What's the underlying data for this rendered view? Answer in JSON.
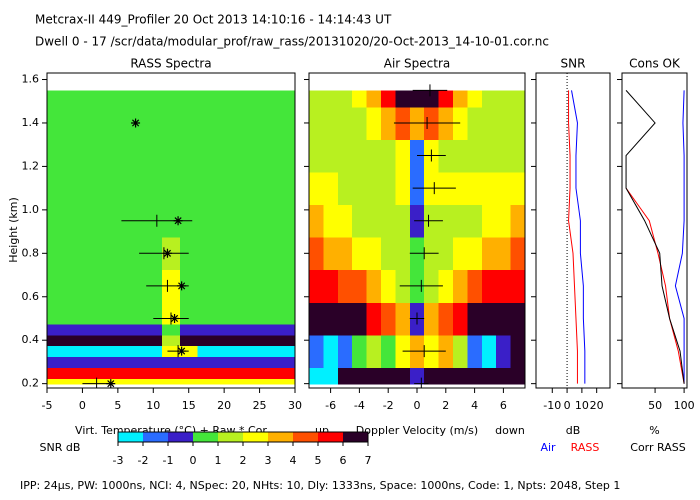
{
  "header": {
    "title": "Metcrax-II  449_Profiler  20 Oct 2013  14:10:16 - 14:14:43 UT",
    "subtitle": "Dwell  0 - 17  /scr/data/modular_prof/raw_rass/20131020/20-Oct-2013_14-10-01.cor.nc"
  },
  "footer": "IPP: 24μs, PW: 1000ns, NCI: 4, NSpec: 20, NHts: 10, Dly: 1333ns, Space: 1000ns, Code: 1, Npts: 2048, Step 1",
  "colorbar": {
    "label": "SNR dB",
    "ticks": [
      -3,
      -2,
      -1,
      0,
      1,
      2,
      3,
      4,
      5,
      6,
      7
    ],
    "colors": [
      "#00f0ff",
      "#2a6cff",
      "#3a1fc8",
      "#44e63a",
      "#b8f020",
      "#ffff00",
      "#ffb000",
      "#ff5000",
      "#ff0000",
      "#2a0028"
    ]
  },
  "chart_data": [
    {
      "type": "heatmap",
      "title": "RASS Spectra",
      "ylabel": "Height (km)",
      "xlabel": "Virt. Temperature (°C)  + Raw  * Cor",
      "ylim": [
        0.18,
        1.63
      ],
      "yticks": [
        0.2,
        0.4,
        0.6,
        0.8,
        {
          "value": 1,
          "label": "1.0"
        },
        1.2,
        1.4,
        1.6
      ],
      "xlim": [
        -5,
        30
      ],
      "xticks": [
        -5,
        0,
        5,
        10,
        15,
        20,
        25,
        30
      ],
      "heatmap": {
        "heights": [
          0.2,
          0.25,
          0.3,
          0.35,
          0.4,
          0.45,
          0.5,
          0.65,
          0.8,
          0.95,
          1.1,
          1.25,
          1.4,
          1.55
        ],
        "x": [
          -5,
          -2.5,
          0,
          2.5,
          5,
          7.5,
          10,
          12.5,
          15,
          17.5,
          20,
          22.5,
          25,
          27.5,
          30
        ],
        "values": [
          [
            2,
            2,
            2,
            2,
            2,
            2,
            2,
            2,
            2,
            2,
            2,
            2,
            2,
            2,
            2
          ],
          [
            5,
            5,
            5,
            5,
            5,
            5,
            5,
            5,
            5,
            5,
            5,
            5,
            5,
            5,
            5
          ],
          [
            -1,
            -1,
            -1,
            -1,
            -1,
            -1,
            -1,
            -1,
            -1,
            -1,
            -1,
            -1,
            -1,
            -1,
            -1
          ],
          [
            -3,
            -3,
            -3,
            -3,
            -3,
            -3,
            -3,
            2,
            2,
            -3,
            -3,
            -3,
            -3,
            -3,
            -3
          ],
          [
            6,
            6,
            6,
            6,
            6,
            6,
            6,
            1,
            6,
            6,
            6,
            6,
            6,
            6,
            6
          ],
          [
            -1,
            -1,
            -1,
            -1,
            -1,
            -1,
            -1,
            0,
            -1,
            -1,
            -1,
            -1,
            -1,
            -1,
            -1
          ],
          [
            0,
            0,
            0,
            0,
            0,
            0,
            0,
            2,
            0,
            0,
            0,
            0,
            0,
            0,
            0
          ],
          [
            0,
            0,
            0,
            0,
            0,
            0,
            0,
            2,
            0,
            0,
            0,
            0,
            0,
            0,
            0
          ],
          [
            0,
            0,
            0,
            0,
            0,
            0,
            0,
            1,
            0,
            0,
            0,
            0,
            0,
            0,
            0
          ],
          [
            0,
            0,
            0,
            0,
            0,
            0,
            0,
            0,
            0,
            0,
            0,
            0,
            0,
            0,
            0
          ],
          [
            0,
            0,
            0,
            0,
            0,
            0,
            0,
            0,
            0,
            0,
            0,
            0,
            0,
            0,
            0
          ],
          [
            0,
            0,
            0,
            0,
            0,
            0,
            0,
            0,
            0,
            0,
            0,
            0,
            0,
            0,
            0
          ],
          [
            0,
            0,
            0,
            0,
            0,
            0,
            0,
            0,
            0,
            0,
            0,
            0,
            0,
            0,
            0
          ],
          [
            0,
            0,
            0,
            0,
            0,
            0,
            0,
            0,
            0,
            0,
            0,
            0,
            0,
            0,
            0
          ]
        ]
      },
      "markers": {
        "heights": [
          0.2,
          0.35,
          0.5,
          0.65,
          0.8,
          0.95,
          1.4
        ],
        "raw": [
          2,
          13.5,
          12.5,
          12,
          11.5,
          10.5,
          null
        ],
        "raw_err": [
          2,
          1.5,
          2.5,
          3,
          3.5,
          5,
          null
        ],
        "cor": [
          4,
          14,
          13,
          14,
          12,
          13.5,
          7.5
        ]
      }
    },
    {
      "type": "heatmap",
      "title": "Air Spectra",
      "xlabel_left": "up",
      "xlabel": "Doppler Velocity (m/s)",
      "xlabel_right": "down",
      "xlim": [
        -7.5,
        7.5
      ],
      "xticks": [
        -6,
        -4,
        -2,
        0,
        2,
        4,
        6
      ],
      "heatmap": {
        "heights": [
          0.2,
          0.35,
          0.5,
          0.65,
          0.8,
          0.95,
          1.1,
          1.25,
          1.4,
          1.55
        ],
        "x": [
          -7,
          -6,
          -5,
          -4,
          -3,
          -2,
          -1,
          0,
          1,
          2,
          3,
          4,
          5,
          6,
          7
        ],
        "values": [
          [
            -3,
            -3,
            6,
            6,
            6,
            6,
            6,
            -1,
            6,
            6,
            6,
            6,
            6,
            6,
            6
          ],
          [
            -2,
            -3,
            -2,
            0,
            1,
            0,
            2,
            3,
            2,
            3,
            1,
            -2,
            -3,
            -1,
            6
          ],
          [
            6,
            6,
            6,
            6,
            5,
            4,
            3,
            -1,
            3,
            4,
            5,
            6,
            6,
            6,
            6
          ],
          [
            5,
            5,
            4,
            4,
            3,
            2,
            1,
            0,
            1,
            2,
            3,
            4,
            5,
            5,
            5
          ],
          [
            4,
            3,
            3,
            2,
            2,
            1,
            1,
            0,
            1,
            1,
            2,
            2,
            3,
            3,
            4
          ],
          [
            3,
            2,
            2,
            1,
            1,
            1,
            1,
            -1,
            1,
            1,
            1,
            1,
            2,
            2,
            3
          ],
          [
            2,
            2,
            1,
            1,
            1,
            1,
            2,
            -2,
            2,
            2,
            2,
            2,
            2,
            2,
            2
          ],
          [
            1,
            1,
            1,
            1,
            1,
            1,
            2,
            -2,
            2,
            1,
            1,
            1,
            1,
            1,
            1
          ],
          [
            1,
            1,
            1,
            1,
            2,
            3,
            4,
            3,
            4,
            3,
            2,
            1,
            1,
            1,
            1
          ],
          [
            1,
            1,
            1,
            2,
            3,
            5,
            6,
            6,
            6,
            5,
            3,
            2,
            1,
            1,
            1
          ]
        ]
      },
      "markers": {
        "heights": [
          0.2,
          0.35,
          0.5,
          0.65,
          0.8,
          0.95,
          1.1,
          1.25,
          1.4,
          1.55
        ],
        "raw": [
          0.3,
          0.5,
          0,
          0.3,
          0.5,
          0.8,
          1.2,
          1.0,
          0.7,
          0.9
        ],
        "raw_err": [
          0.5,
          1.5,
          0.5,
          1.5,
          1.0,
          1.0,
          1.5,
          1.0,
          2.3,
          1.2
        ]
      }
    },
    {
      "type": "profile",
      "title": "SNR",
      "xlabel": "dB",
      "xlim": [
        -21,
        29
      ],
      "xticks": [
        -10,
        0,
        10,
        20
      ],
      "ref_line": 0,
      "y": [
        0.2,
        0.35,
        0.5,
        0.65,
        0.8,
        0.95,
        1.1,
        1.25,
        1.4,
        1.55
      ],
      "series": [
        {
          "color": "#0000ff",
          "values": [
            12,
            12,
            11,
            11,
            9,
            9,
            6,
            6,
            7,
            3
          ]
        },
        {
          "color": "#ff0000",
          "values": [
            7,
            7,
            6,
            5,
            4,
            1,
            2,
            2,
            1,
            1
          ]
        }
      ]
    },
    {
      "type": "profile",
      "title": "Cons OK",
      "xlabel": "%",
      "xlim": [
        -7,
        105
      ],
      "xticks": [
        50,
        100
      ],
      "y": [
        0.2,
        0.35,
        0.5,
        0.65,
        0.8,
        0.95,
        1.1,
        1.25,
        1.4,
        1.55
      ],
      "series": [
        {
          "name": "Air",
          "color": "#0000ff",
          "values": [
            100,
            100,
            100,
            85,
            97,
            100,
            100,
            100,
            98,
            100
          ]
        },
        {
          "name": "RASS",
          "color": "#ff0000",
          "values": [
            100,
            90,
            75,
            68,
            55,
            40,
            0,
            null,
            null,
            null
          ]
        },
        {
          "name": "Corr RASS",
          "color": "#000000",
          "values": [
            100,
            93,
            75,
            62,
            58,
            32,
            0,
            0,
            50,
            0
          ]
        }
      ]
    }
  ]
}
